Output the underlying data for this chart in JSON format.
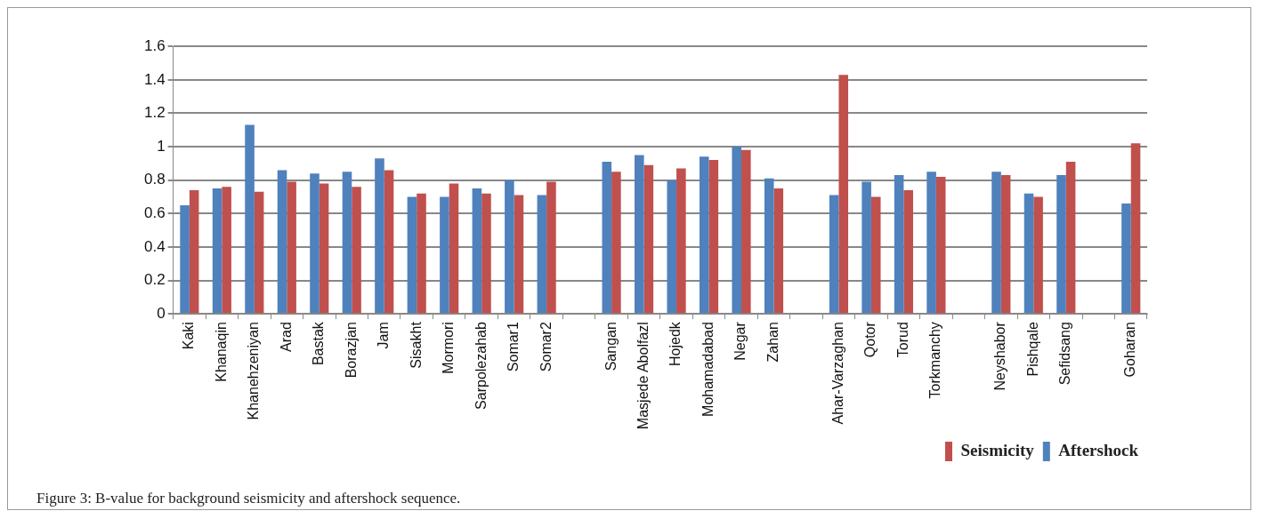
{
  "chart_data": {
    "type": "bar",
    "categories": [
      "Kaki",
      "Khanaqin",
      "Khanehzeniyan",
      "Arad",
      "Bastak",
      "Borazjan",
      "Jam",
      "Sisakht",
      "Mormori",
      "Sarpolezahab",
      "Somar1",
      "Somar2",
      null,
      "Sangan",
      "Masjede Abolfazl",
      "Hojedk",
      "Mohamadabad",
      "Negar",
      "Zahan",
      null,
      "Ahar-Varzaghan",
      "Qotor",
      "Torud",
      "Torkmanchy",
      null,
      "Neyshabor",
      "Pishqale",
      "Sefidsang",
      null,
      "Goharan"
    ],
    "series": [
      {
        "name": "Aftershock",
        "color": "#4f81bd",
        "values": [
          0.65,
          0.75,
          1.13,
          0.86,
          0.84,
          0.85,
          0.93,
          0.7,
          0.7,
          0.75,
          0.8,
          0.71,
          null,
          0.91,
          0.95,
          0.8,
          0.94,
          1.0,
          0.81,
          null,
          0.71,
          0.79,
          0.83,
          0.85,
          null,
          0.85,
          0.72,
          0.83,
          null,
          0.66
        ]
      },
      {
        "name": "Seismicity",
        "color": "#c0504d",
        "values": [
          0.74,
          0.76,
          0.73,
          0.79,
          0.78,
          0.76,
          0.86,
          0.72,
          0.78,
          0.72,
          0.71,
          0.79,
          null,
          0.85,
          0.89,
          0.87,
          0.92,
          0.98,
          0.75,
          null,
          1.43,
          0.7,
          0.74,
          0.82,
          null,
          0.83,
          0.7,
          0.91,
          null,
          1.02
        ]
      }
    ],
    "ylim": [
      0,
      1.6
    ],
    "yticks": [
      0,
      0.2,
      0.4,
      0.6,
      0.8,
      1,
      1.2,
      1.4,
      1.6
    ],
    "grid": "y",
    "legend": "bottom right",
    "annotations": [
      "Figure 3: B-value for background seismicity and aftershock sequence."
    ]
  }
}
